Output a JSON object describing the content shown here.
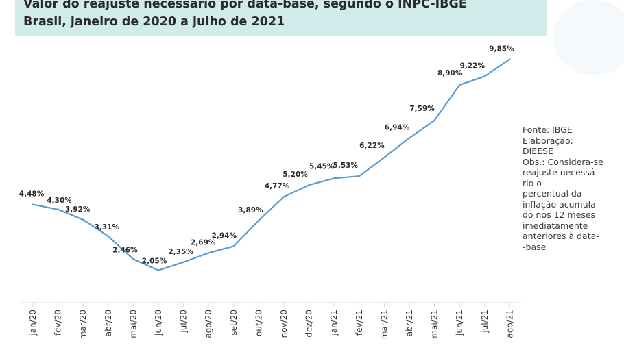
{
  "chart_data": {
    "type": "line",
    "title": "Valor do reajuste necessário por data-base, segundo o INPC-IBGE",
    "subtitle": "Brasil, janeiro de 2020 a julho de 2021",
    "categories": [
      "jan/20",
      "fev/20",
      "mar/20",
      "abr/20",
      "mai/20",
      "jun/20",
      "jul/20",
      "ago/20",
      "set/20",
      "out/20",
      "nov/20",
      "dez/20",
      "jan/21",
      "fev/21",
      "mar/21",
      "abr/21",
      "mai/21",
      "jun/21",
      "jul/21",
      "ago/21"
    ],
    "values": [
      4.48,
      4.3,
      3.92,
      3.31,
      2.46,
      2.05,
      2.35,
      2.69,
      2.94,
      3.89,
      4.77,
      5.2,
      5.45,
      5.53,
      6.22,
      6.94,
      7.59,
      8.9,
      9.22,
      9.85
    ],
    "data_labels": [
      "4,48%",
      "4,30%",
      "3,92%",
      "3,31%",
      "2,46%",
      "2,05%",
      "2,35%",
      "2,69%",
      "2,94%",
      "3,89%",
      "4,77%",
      "5,20%",
      "5,45%",
      "5,53%",
      "6,22%",
      "6,94%",
      "7,59%",
      "8,90%",
      "9,22%",
      "9,85%"
    ],
    "line_color": "#5a9bd0",
    "grid": false
  },
  "note": {
    "lines": [
      "Fonte: IBGE",
      "Elaboração:",
      "DIEESE",
      "Obs.: Considera-se",
      "reajuste necessá-",
      "rio o",
      "percentual da",
      "inflação acumula-",
      "do nos 12 meses",
      "imediatamente",
      "anteriores à data-",
      "-base"
    ]
  },
  "colors": {
    "title_bg": "#d2eceb",
    "title_text": "#2b2b2b"
  }
}
